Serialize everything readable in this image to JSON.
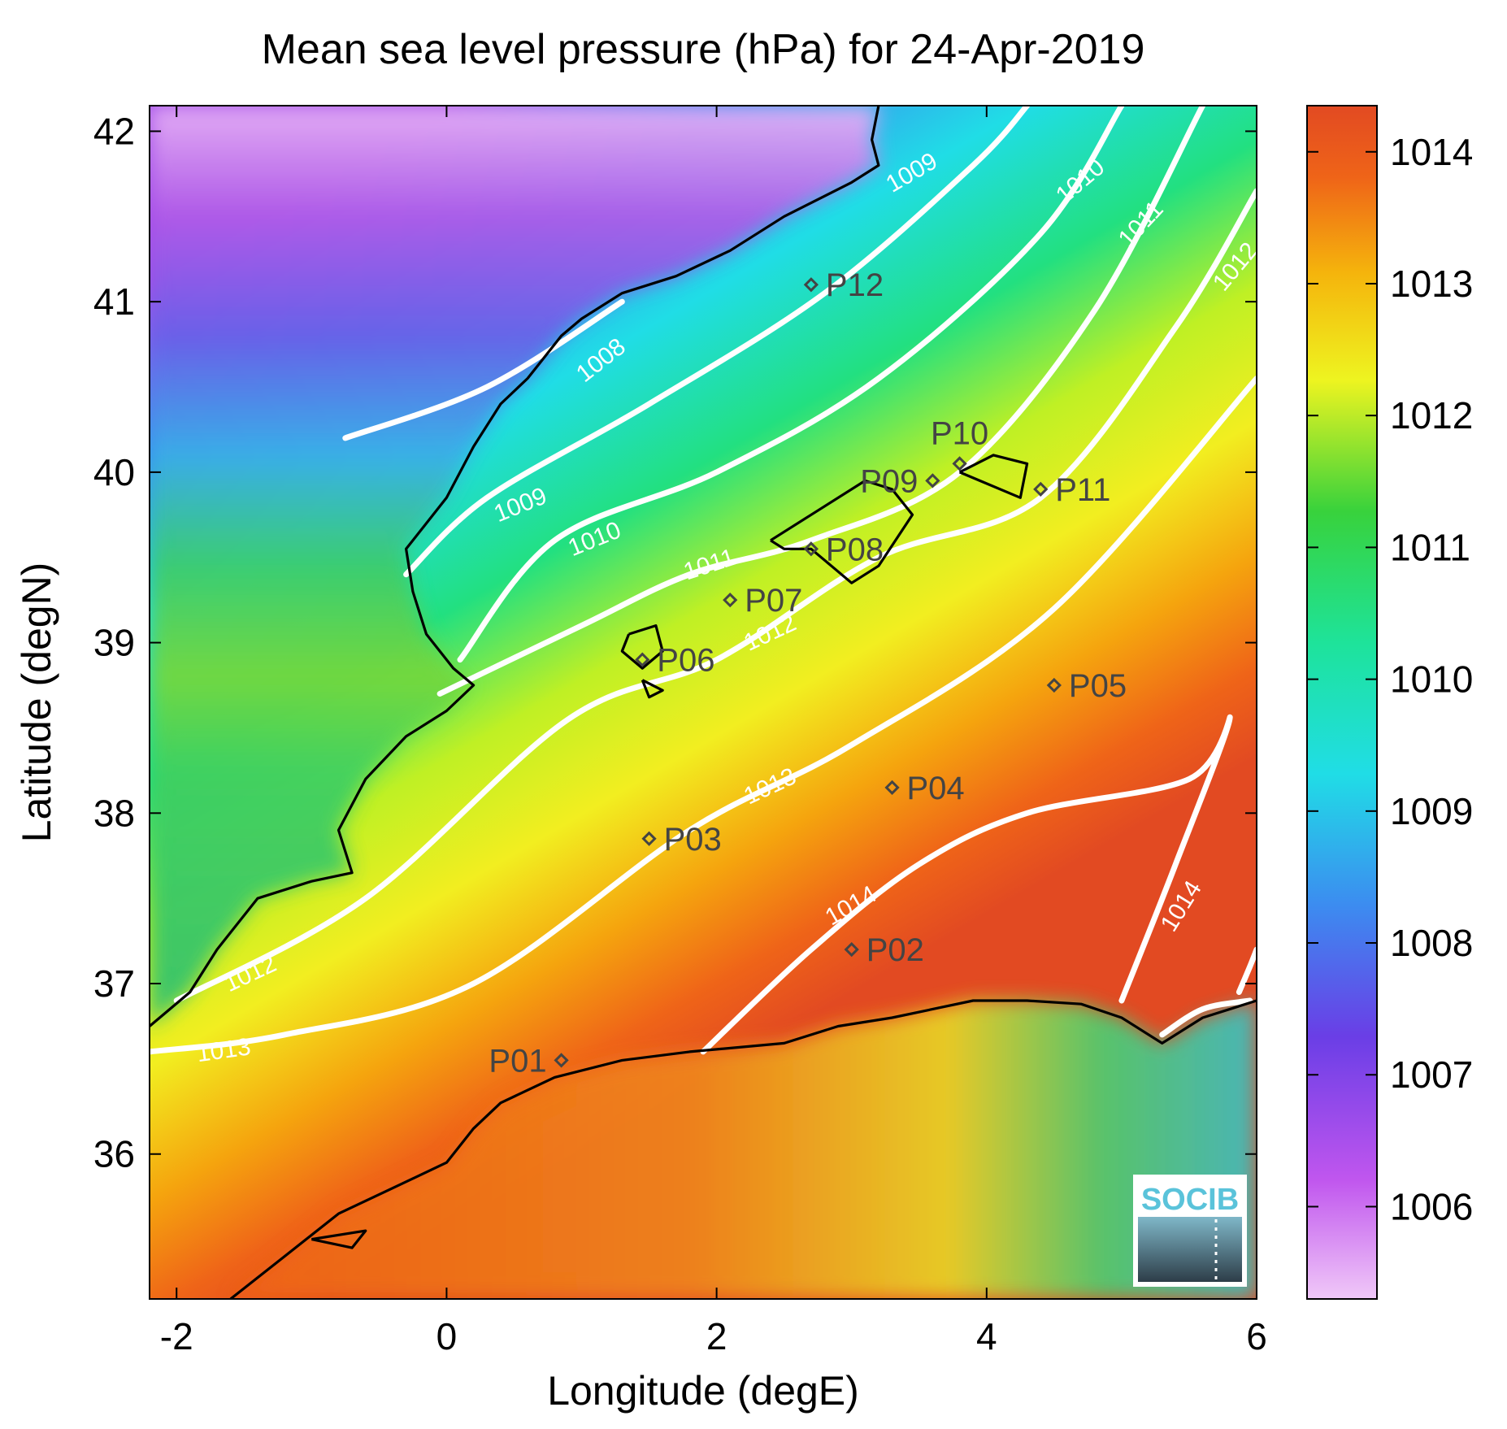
{
  "title": "Mean sea level pressure (hPa) for 24-Apr-2019",
  "xlabel": "Longitude (degE)",
  "ylabel": "Latitude (degN)",
  "x_range": [
    -2.2,
    6
  ],
  "y_range": [
    35.15,
    42.15
  ],
  "x_ticks": [
    "-2",
    "0",
    "2",
    "4",
    "6"
  ],
  "y_ticks": [
    "36",
    "37",
    "38",
    "39",
    "40",
    "41",
    "42"
  ],
  "colorbar": {
    "min": 1005.3,
    "max": 1014.35,
    "ticks": [
      "1006",
      "1007",
      "1008",
      "1009",
      "1010",
      "1011",
      "1012",
      "1013",
      "1014"
    ],
    "colors": [
      "#f0c8f8",
      "#c056ee",
      "#6a3ee6",
      "#3c8cf0",
      "#20dde6",
      "#1ee39a",
      "#38d23c",
      "#eef420",
      "#f5b40c",
      "#ef6418",
      "#e24a22"
    ]
  },
  "chart_data": {
    "type": "heatmap",
    "variable": "Mean sea level pressure (hPa)",
    "date": "24-Apr-2019",
    "contours": [
      {
        "level": "1008",
        "points": [
          [
            -0.75,
            40.2
          ],
          [
            0.3,
            40.5
          ],
          [
            1.3,
            41.0
          ]
        ]
      },
      {
        "level": "1009",
        "points": [
          [
            -0.3,
            39.4
          ],
          [
            0.3,
            39.85
          ],
          [
            1.5,
            40.4
          ],
          [
            2.8,
            41.05
          ],
          [
            3.9,
            41.8
          ],
          [
            4.3,
            42.15
          ]
        ]
      },
      {
        "level": "1010",
        "points": [
          [
            0.1,
            38.9
          ],
          [
            0.8,
            39.6
          ],
          [
            2.0,
            40.0
          ],
          [
            3.2,
            40.55
          ],
          [
            4.4,
            41.4
          ],
          [
            5.0,
            42.15
          ]
        ]
      },
      {
        "level": "1011",
        "points": [
          [
            -0.05,
            38.7
          ],
          [
            1.0,
            39.1
          ],
          [
            1.8,
            39.4
          ],
          [
            2.7,
            39.6
          ],
          [
            3.8,
            40.0
          ],
          [
            4.8,
            40.95
          ],
          [
            5.6,
            42.15
          ]
        ]
      },
      {
        "level": "1012",
        "points": [
          [
            -2.0,
            36.9
          ],
          [
            -0.6,
            37.5
          ],
          [
            0.9,
            38.55
          ],
          [
            2.0,
            38.9
          ],
          [
            3.2,
            39.5
          ],
          [
            4.4,
            39.85
          ],
          [
            5.4,
            40.85
          ],
          [
            6.0,
            41.65
          ]
        ]
      },
      {
        "level": "1013",
        "points": [
          [
            -2.2,
            36.6
          ],
          [
            -1.2,
            36.7
          ],
          [
            0.2,
            37.0
          ],
          [
            1.8,
            37.9
          ],
          [
            3.0,
            38.4
          ],
          [
            4.5,
            39.2
          ],
          [
            6.0,
            40.55
          ]
        ]
      },
      {
        "level": "1014",
        "points": [
          [
            1.9,
            36.6
          ],
          [
            2.7,
            37.2
          ],
          [
            3.5,
            37.7
          ],
          [
            4.3,
            38.0
          ],
          [
            5.5,
            38.2
          ],
          [
            5.8,
            38.55
          ],
          [
            5.4,
            37.7
          ],
          [
            5.0,
            36.9
          ]
        ]
      },
      {
        "level": "1014",
        "points": [
          [
            5.3,
            36.7
          ],
          [
            5.6,
            36.85
          ],
          [
            5.95,
            36.9
          ]
        ]
      },
      {
        "level": "1014",
        "points": [
          [
            5.87,
            36.95
          ],
          [
            5.95,
            37.1
          ],
          [
            6.0,
            37.2
          ]
        ]
      }
    ],
    "contour_labels": [
      {
        "text": "1008",
        "lon": 1.15,
        "lat": 40.65,
        "angle": -38
      },
      {
        "text": "1009",
        "lon": 3.45,
        "lat": 41.75,
        "angle": -30
      },
      {
        "text": "1009",
        "lon": 0.55,
        "lat": 39.8,
        "angle": -22
      },
      {
        "text": "1010",
        "lon": 4.7,
        "lat": 41.7,
        "angle": -40
      },
      {
        "text": "1010",
        "lon": 1.1,
        "lat": 39.6,
        "angle": -22
      },
      {
        "text": "1011",
        "lon": 5.15,
        "lat": 41.45,
        "angle": -47
      },
      {
        "text": "1011",
        "lon": 1.95,
        "lat": 39.45,
        "angle": -18
      },
      {
        "text": "1012",
        "lon": 5.85,
        "lat": 41.2,
        "angle": -50
      },
      {
        "text": "1012",
        "lon": 2.4,
        "lat": 39.05,
        "angle": -25
      },
      {
        "text": "1012",
        "lon": -1.45,
        "lat": 37.05,
        "angle": -25
      },
      {
        "text": "1013",
        "lon": -1.65,
        "lat": 36.6,
        "angle": -8
      },
      {
        "text": "1013",
        "lon": 2.4,
        "lat": 38.15,
        "angle": -25
      },
      {
        "text": "1014",
        "lon": 3.0,
        "lat": 37.45,
        "angle": -30
      },
      {
        "text": "1014",
        "lon": 5.45,
        "lat": 37.45,
        "angle": -58
      }
    ],
    "stations": [
      {
        "name": "P01",
        "lon": 0.85,
        "lat": 36.55,
        "label_side": "left"
      },
      {
        "name": "P02",
        "lon": 3.0,
        "lat": 37.2,
        "label_side": "right"
      },
      {
        "name": "P03",
        "lon": 1.5,
        "lat": 37.85,
        "label_side": "right"
      },
      {
        "name": "P04",
        "lon": 3.3,
        "lat": 38.15,
        "label_side": "right"
      },
      {
        "name": "P05",
        "lon": 4.5,
        "lat": 38.75,
        "label_side": "right"
      },
      {
        "name": "P06",
        "lon": 1.45,
        "lat": 38.9,
        "label_side": "right"
      },
      {
        "name": "P07",
        "lon": 2.1,
        "lat": 39.25,
        "label_side": "right"
      },
      {
        "name": "P08",
        "lon": 2.7,
        "lat": 39.55,
        "label_side": "right"
      },
      {
        "name": "P09",
        "lon": 3.6,
        "lat": 39.95,
        "label_side": "left"
      },
      {
        "name": "P10",
        "lon": 3.8,
        "lat": 40.05,
        "label_side": "above"
      },
      {
        "name": "P11",
        "lon": 4.4,
        "lat": 39.9,
        "label_side": "right"
      },
      {
        "name": "P12",
        "lon": 2.7,
        "lat": 41.1,
        "label_side": "right"
      }
    ],
    "coastlines": [
      [
        [
          3.2,
          42.15
        ],
        [
          3.15,
          41.95
        ],
        [
          3.2,
          41.8
        ],
        [
          3.0,
          41.7
        ],
        [
          2.5,
          41.5
        ],
        [
          2.1,
          41.3
        ],
        [
          1.7,
          41.15
        ],
        [
          1.3,
          41.05
        ],
        [
          1.0,
          40.9
        ],
        [
          0.85,
          40.8
        ],
        [
          0.7,
          40.65
        ],
        [
          0.6,
          40.55
        ],
        [
          0.4,
          40.4
        ],
        [
          0.2,
          40.15
        ],
        [
          0.0,
          39.85
        ],
        [
          -0.3,
          39.55
        ],
        [
          -0.25,
          39.3
        ],
        [
          -0.15,
          39.05
        ],
        [
          0.05,
          38.85
        ],
        [
          0.2,
          38.75
        ],
        [
          0.0,
          38.6
        ],
        [
          -0.3,
          38.45
        ],
        [
          -0.6,
          38.2
        ],
        [
          -0.8,
          37.9
        ],
        [
          -0.7,
          37.65
        ],
        [
          -1.0,
          37.6
        ],
        [
          -1.4,
          37.5
        ],
        [
          -1.7,
          37.2
        ],
        [
          -1.9,
          36.95
        ],
        [
          -2.2,
          36.75
        ]
      ],
      [
        [
          -1.6,
          35.15
        ],
        [
          -1.2,
          35.4
        ],
        [
          -0.8,
          35.65
        ],
        [
          -0.4,
          35.8
        ],
        [
          0.0,
          35.95
        ],
        [
          0.2,
          36.15
        ],
        [
          0.4,
          36.3
        ],
        [
          0.8,
          36.45
        ],
        [
          1.3,
          36.55
        ],
        [
          1.8,
          36.6
        ],
        [
          2.5,
          36.65
        ],
        [
          2.9,
          36.75
        ],
        [
          3.3,
          36.8
        ],
        [
          3.9,
          36.9
        ],
        [
          4.3,
          36.9
        ],
        [
          4.7,
          36.88
        ],
        [
          5.0,
          36.8
        ],
        [
          5.3,
          36.65
        ],
        [
          5.6,
          36.8
        ],
        [
          6.0,
          36.9
        ]
      ],
      [
        [
          2.4,
          39.6
        ],
        [
          2.7,
          39.75
        ],
        [
          3.1,
          39.95
        ],
        [
          3.3,
          39.9
        ],
        [
          3.45,
          39.75
        ],
        [
          3.2,
          39.45
        ],
        [
          3.0,
          39.35
        ],
        [
          2.85,
          39.45
        ],
        [
          2.7,
          39.55
        ],
        [
          2.5,
          39.55
        ],
        [
          2.4,
          39.6
        ]
      ],
      [
        [
          3.8,
          40.0
        ],
        [
          4.05,
          40.1
        ],
        [
          4.3,
          40.05
        ],
        [
          4.25,
          39.85
        ],
        [
          3.95,
          39.95
        ],
        [
          3.8,
          40.0
        ]
      ],
      [
        [
          1.35,
          39.05
        ],
        [
          1.55,
          39.1
        ],
        [
          1.6,
          38.95
        ],
        [
          1.45,
          38.85
        ],
        [
          1.3,
          38.95
        ],
        [
          1.35,
          39.05
        ]
      ],
      [
        [
          1.45,
          38.78
        ],
        [
          1.6,
          38.72
        ],
        [
          1.5,
          38.68
        ],
        [
          1.45,
          38.78
        ]
      ],
      [
        [
          -1.0,
          35.5
        ],
        [
          -0.6,
          35.55
        ],
        [
          -0.7,
          35.45
        ],
        [
          -1.0,
          35.5
        ]
      ]
    ]
  },
  "logo": {
    "text": "SOCIB"
  }
}
